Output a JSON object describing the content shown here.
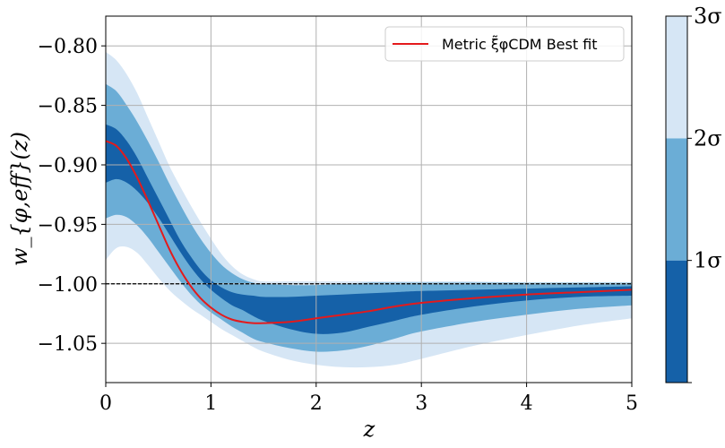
{
  "chart_data": {
    "type": "area",
    "xlabel": "z",
    "ylabel": "w_{φ,eff}(z)",
    "xlim": [
      0,
      5
    ],
    "ylim": [
      -1.083,
      -0.775
    ],
    "xticks": [
      0,
      1,
      2,
      3,
      4,
      5
    ],
    "yticks": [
      -0.8,
      -0.85,
      -0.9,
      -0.95,
      -1.0,
      -1.05
    ],
    "grid": true,
    "legend": {
      "placement": "top-right",
      "entries": [
        "Metric ξ̃φCDM Best fit"
      ]
    },
    "reference_line": {
      "y": -1.0,
      "style": "dashed",
      "color": "#000000"
    },
    "colors": {
      "sigma1": "#1561a8",
      "sigma2": "#6badd6",
      "sigma3": "#d6e6f5",
      "best_fit": "#e41a1c",
      "grid": "#b0b0b0"
    },
    "x": [
      0,
      0.1,
      0.2,
      0.3,
      0.4,
      0.5,
      0.6,
      0.7,
      0.8,
      0.9,
      1.0,
      1.1,
      1.2,
      1.3,
      1.4,
      1.5,
      1.75,
      2.0,
      2.25,
      2.5,
      2.75,
      3.0,
      3.5,
      4.0,
      4.5,
      5.0
    ],
    "bands": [
      {
        "name": "3σ",
        "upper": [
          -0.805,
          -0.812,
          -0.824,
          -0.84,
          -0.86,
          -0.88,
          -0.9,
          -0.917,
          -0.933,
          -0.948,
          -0.962,
          -0.975,
          -0.985,
          -0.992,
          -0.996,
          -0.998,
          -0.998,
          -0.998,
          -0.998,
          -0.998,
          -0.998,
          -0.998,
          -0.998,
          -0.999,
          -0.999,
          -0.999
        ],
        "lower": [
          -0.98,
          -0.97,
          -0.969,
          -0.974,
          -0.984,
          -0.995,
          -1.005,
          -1.013,
          -1.02,
          -1.026,
          -1.032,
          -1.038,
          -1.043,
          -1.048,
          -1.053,
          -1.057,
          -1.064,
          -1.068,
          -1.07,
          -1.07,
          -1.068,
          -1.063,
          -1.052,
          -1.043,
          -1.035,
          -1.029
        ]
      },
      {
        "name": "2σ",
        "upper": [
          -0.832,
          -0.838,
          -0.85,
          -0.864,
          -0.88,
          -0.897,
          -0.915,
          -0.932,
          -0.948,
          -0.962,
          -0.974,
          -0.984,
          -0.991,
          -0.996,
          -0.999,
          -1.0,
          -1.001,
          -1.001,
          -1.0,
          -0.999,
          -0.999,
          -0.999,
          -0.999,
          -0.999,
          -0.999,
          -0.999
        ],
        "lower": [
          -0.945,
          -0.942,
          -0.944,
          -0.951,
          -0.961,
          -0.973,
          -0.985,
          -0.997,
          -1.008,
          -1.017,
          -1.024,
          -1.03,
          -1.036,
          -1.041,
          -1.046,
          -1.049,
          -1.054,
          -1.057,
          -1.056,
          -1.052,
          -1.046,
          -1.04,
          -1.032,
          -1.026,
          -1.021,
          -1.018
        ]
      },
      {
        "name": "1σ",
        "upper": [
          -0.866,
          -0.87,
          -0.88,
          -0.894,
          -0.911,
          -0.928,
          -0.945,
          -0.962,
          -0.976,
          -0.988,
          -0.997,
          -1.003,
          -1.007,
          -1.009,
          -1.01,
          -1.011,
          -1.011,
          -1.01,
          -1.009,
          -1.008,
          -1.007,
          -1.006,
          -1.005,
          -1.004,
          -1.003,
          -1.002
        ],
        "lower": [
          -0.915,
          -0.912,
          -0.915,
          -0.922,
          -0.932,
          -0.944,
          -0.958,
          -0.972,
          -0.985,
          -0.996,
          -1.005,
          -1.012,
          -1.018,
          -1.022,
          -1.027,
          -1.031,
          -1.038,
          -1.042,
          -1.041,
          -1.036,
          -1.031,
          -1.026,
          -1.019,
          -1.014,
          -1.011,
          -1.01
        ]
      }
    ],
    "best_fit": {
      "name": "Metric ξ̃φCDM Best fit",
      "y": [
        -0.88,
        -0.884,
        -0.895,
        -0.911,
        -0.93,
        -0.95,
        -0.97,
        -0.987,
        -1.001,
        -1.012,
        -1.02,
        -1.026,
        -1.03,
        -1.032,
        -1.033,
        -1.033,
        -1.032,
        -1.029,
        -1.026,
        -1.023,
        -1.019,
        -1.016,
        -1.012,
        -1.009,
        -1.007,
        -1.005
      ]
    },
    "colorbar": {
      "labels": [
        "1σ",
        "2σ",
        "3σ"
      ]
    }
  }
}
